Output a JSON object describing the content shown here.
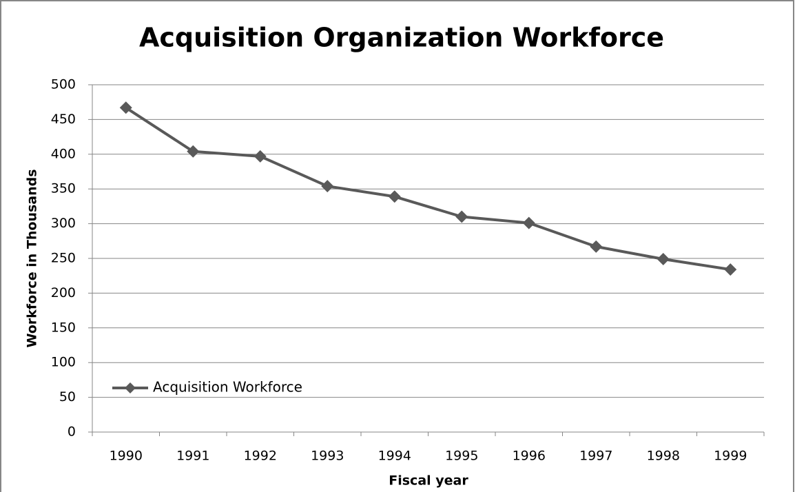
{
  "chart_data": {
    "type": "line",
    "title": "Acquisition Organization Workforce",
    "x_label": "Fiscal year",
    "y_label": "Workforce in Thousands",
    "categories": [
      "1990",
      "1991",
      "1992",
      "1993",
      "1994",
      "1995",
      "1996",
      "1997",
      "1998",
      "1999"
    ],
    "series": [
      {
        "name": "Acquisition Workforce",
        "color": "#595959",
        "values": [
          467,
          404,
          397,
          354,
          339,
          310,
          301,
          267,
          249,
          234
        ]
      }
    ],
    "ylim": [
      0,
      500
    ],
    "yticks": [
      0,
      50,
      100,
      150,
      200,
      250,
      300,
      350,
      400,
      450,
      500
    ],
    "grid": true,
    "legend": "lower left"
  }
}
